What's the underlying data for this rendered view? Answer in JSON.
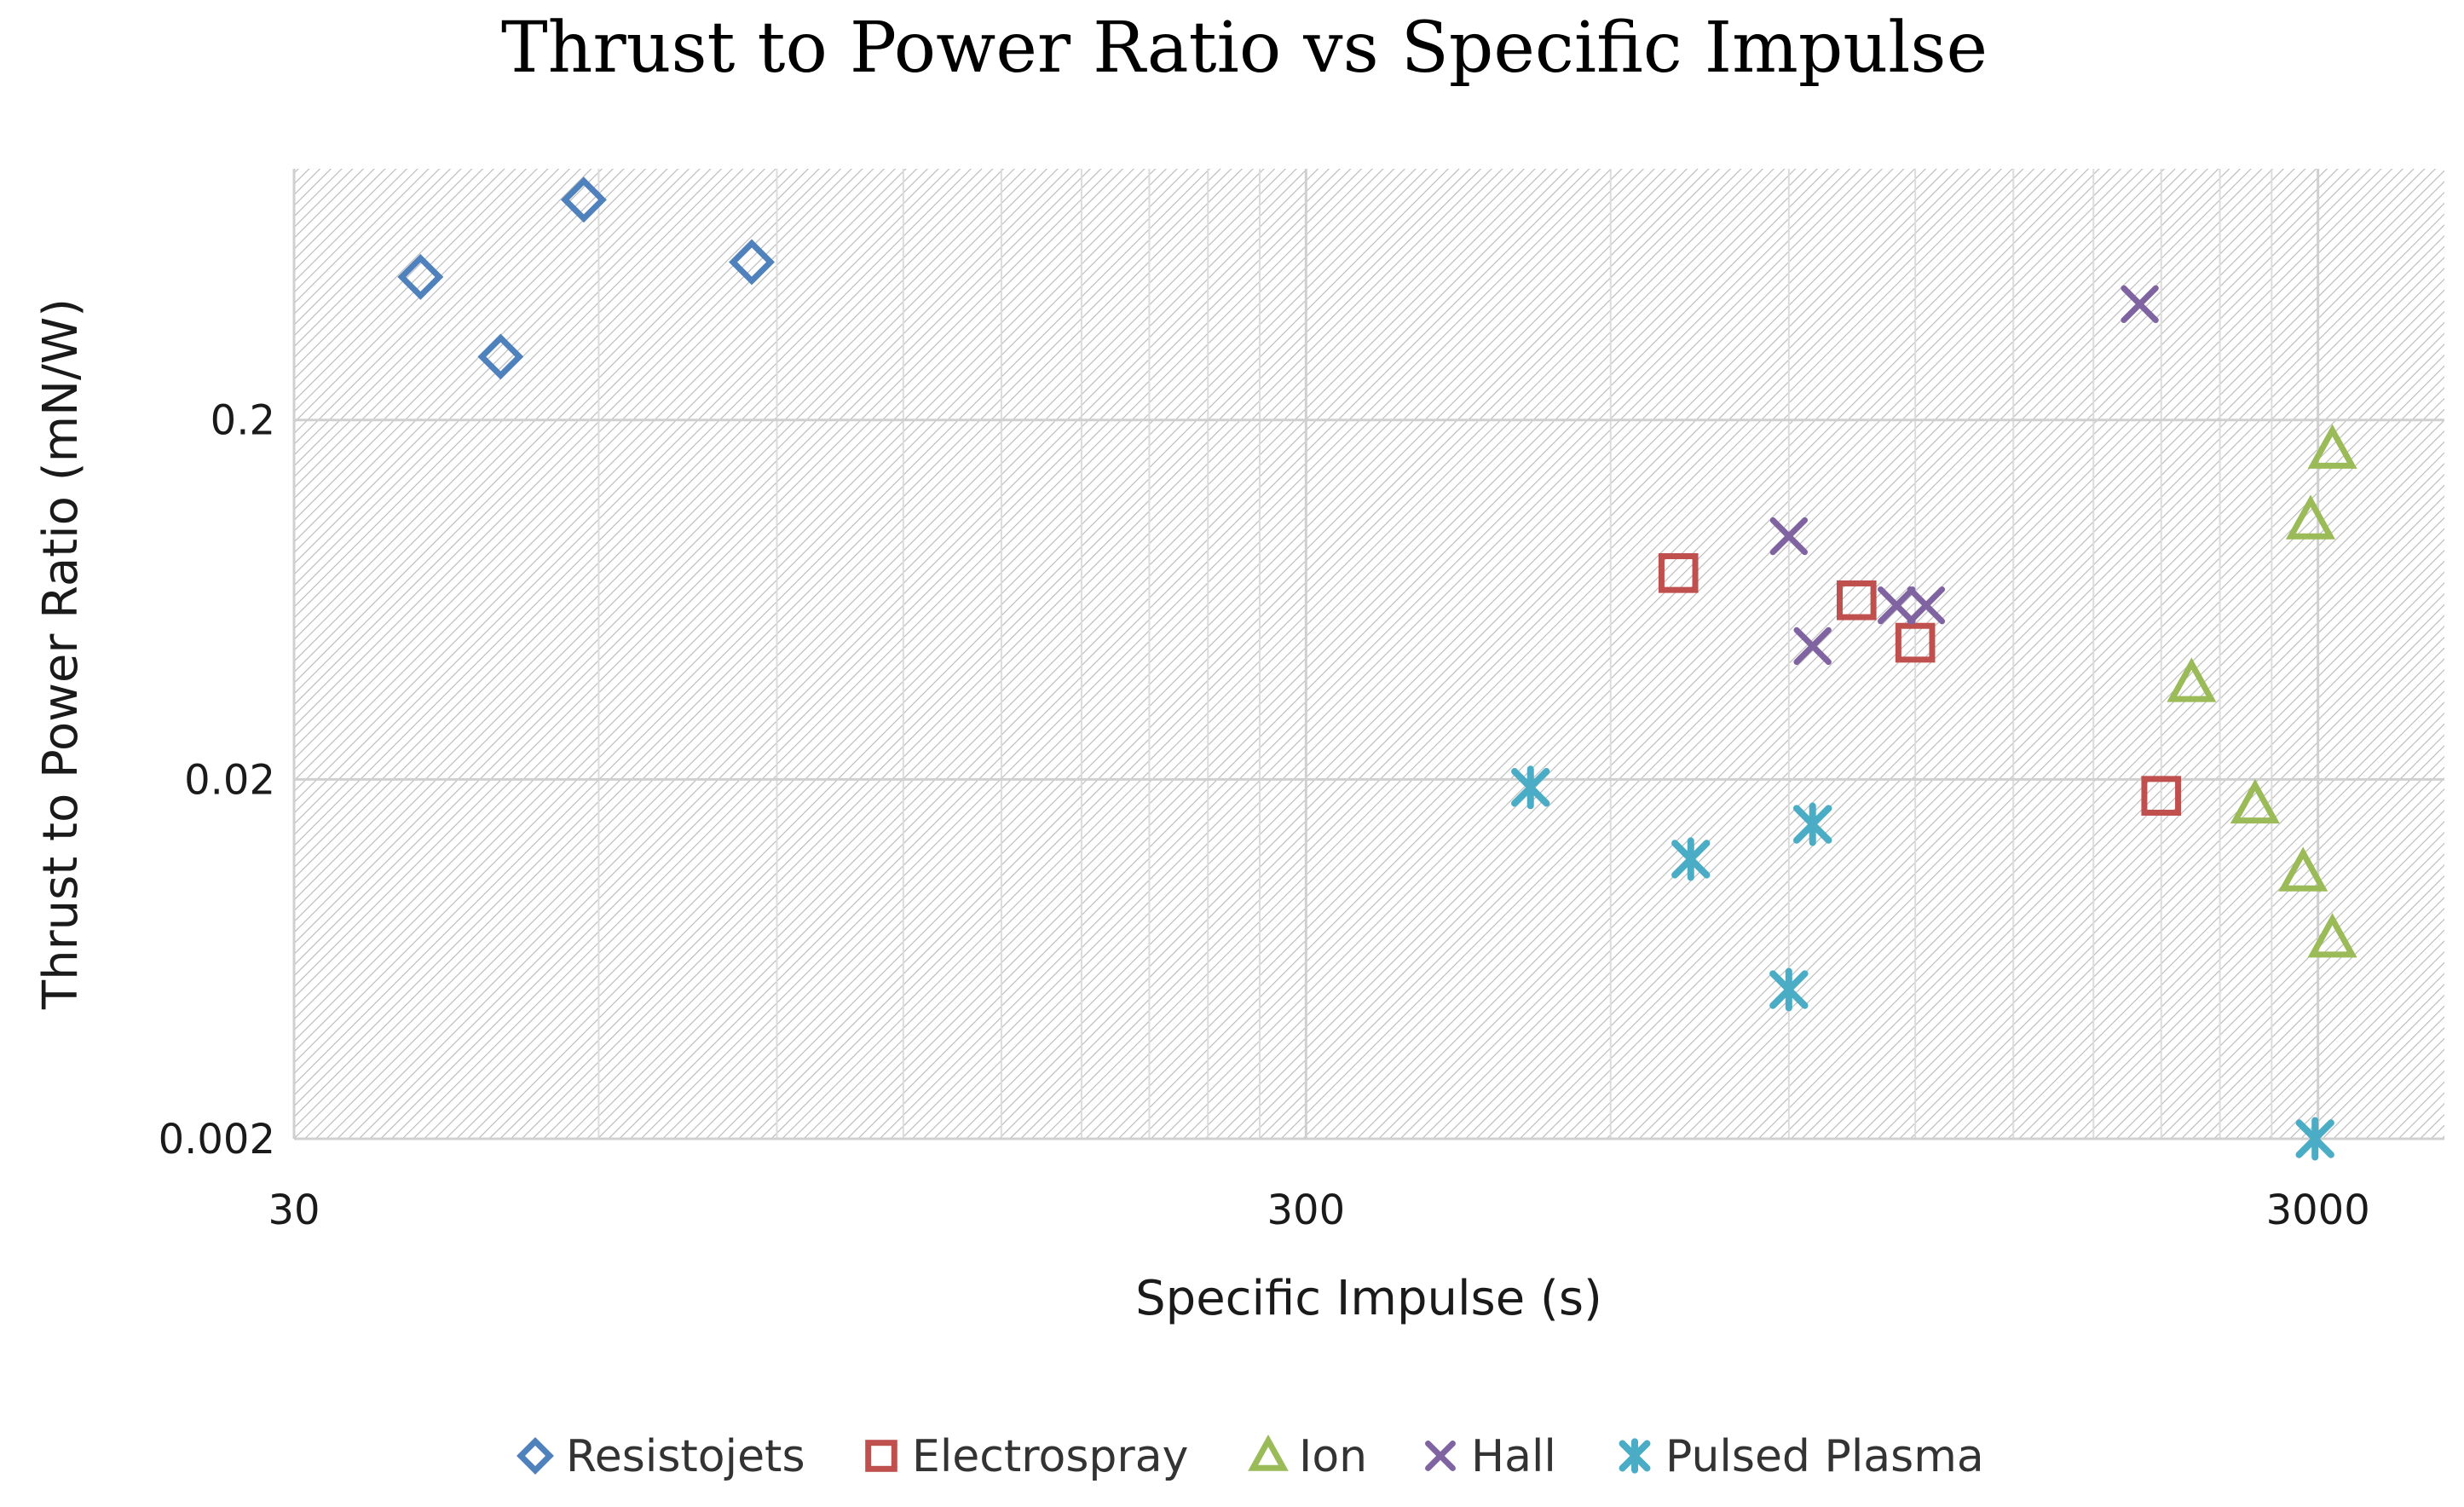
{
  "chart_data": {
    "type": "scatter",
    "title": "Thrust to Power Ratio vs Specific Impulse",
    "xlabel": "Specific Impulse (s)",
    "ylabel": "Thrust to Power Ratio (mN/W)",
    "xscale": "log",
    "yscale": "log",
    "xlim": [
      30,
      4000
    ],
    "ylim": [
      0.002,
      1.0
    ],
    "xticks": [
      30,
      300,
      3000
    ],
    "xtick_labels": [
      "30",
      "300",
      "3000"
    ],
    "yticks": [
      0.002,
      0.02,
      0.2
    ],
    "ytick_labels": [
      "0.002",
      "0.02",
      "0.2"
    ],
    "grid": true,
    "legend_position": "bottom",
    "series": [
      {
        "name": "Resistojets",
        "marker": "diamond",
        "color": "#4F81BD",
        "points": [
          [
            40,
            0.5
          ],
          [
            48,
            0.3
          ],
          [
            58,
            0.82
          ],
          [
            85,
            0.55
          ]
        ]
      },
      {
        "name": "Electrospray",
        "marker": "square",
        "color": "#C0504D",
        "points": [
          [
            700,
            0.075
          ],
          [
            1050,
            0.063
          ],
          [
            1200,
            0.048
          ],
          [
            2100,
            0.018
          ]
        ]
      },
      {
        "name": "Ion",
        "marker": "triangle",
        "color": "#9BBB59",
        "points": [
          [
            3100,
            0.165
          ],
          [
            2950,
            0.105
          ],
          [
            2250,
            0.037
          ],
          [
            2600,
            0.017
          ],
          [
            2900,
            0.011
          ],
          [
            3100,
            0.0072
          ]
        ]
      },
      {
        "name": "Hall",
        "marker": "x",
        "color": "#8064A2",
        "points": [
          [
            2000,
            0.42
          ],
          [
            900,
            0.095
          ],
          [
            950,
            0.047
          ],
          [
            1150,
            0.061
          ],
          [
            1230,
            0.061
          ]
        ]
      },
      {
        "name": "Pulsed Plasma",
        "marker": "star",
        "color": "#4BACC6",
        "points": [
          [
            500,
            0.019
          ],
          [
            720,
            0.012
          ],
          [
            950,
            0.015
          ],
          [
            900,
            0.0052
          ],
          [
            2980,
            0.002
          ]
        ]
      }
    ]
  }
}
